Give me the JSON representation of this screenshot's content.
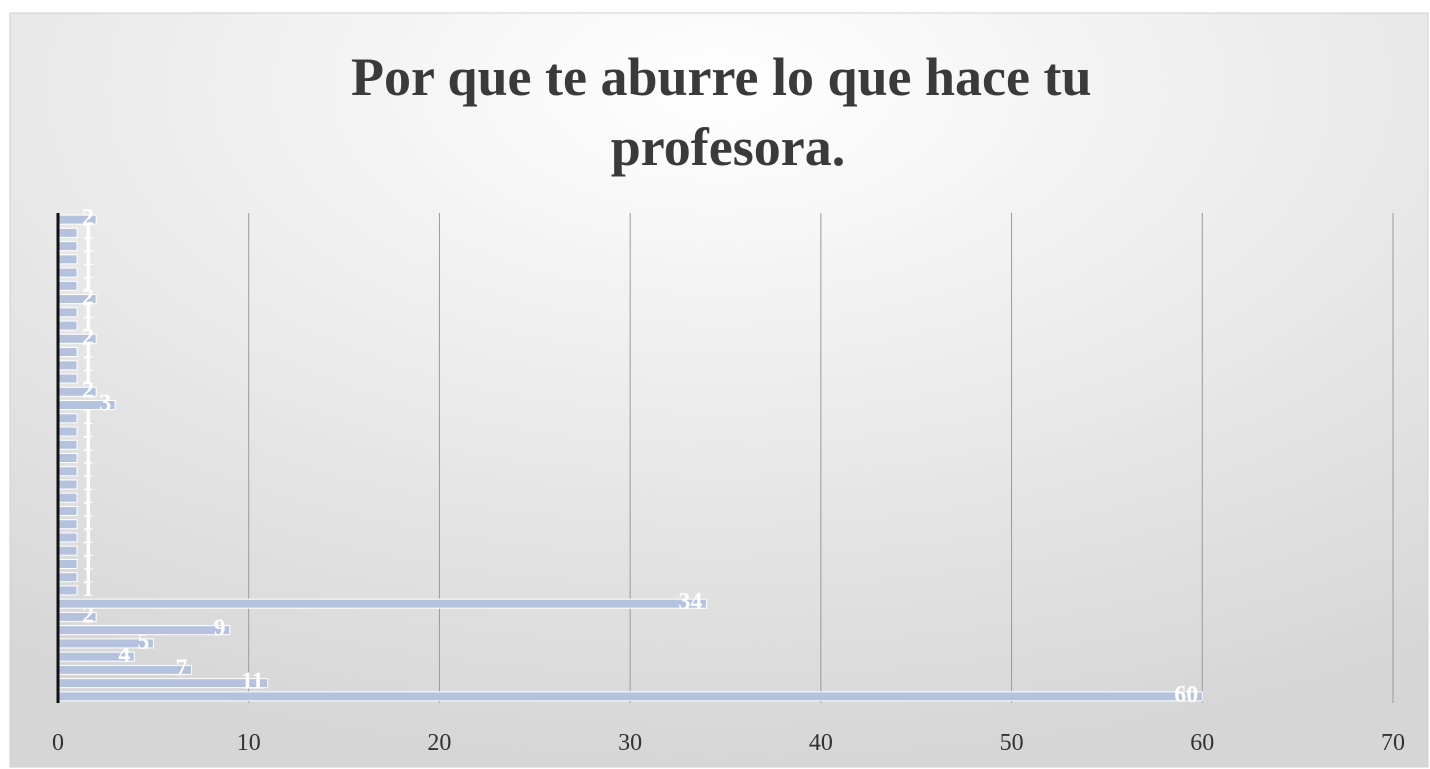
{
  "chart_data": {
    "type": "hbar",
    "title": "Por que te aburre lo que hace tu profesora.",
    "categories": [
      null,
      null,
      null,
      null,
      null,
      null,
      null,
      null,
      null,
      null,
      null,
      null,
      null,
      null,
      null,
      null,
      null,
      null,
      null,
      null,
      null,
      null,
      null,
      null,
      null,
      null,
      null,
      null,
      null,
      null,
      null,
      null,
      null,
      null,
      null,
      null,
      null
    ],
    "values": [
      60,
      11,
      7,
      4,
      5,
      9,
      2,
      34,
      1,
      1,
      1,
      1,
      1,
      1,
      1,
      1,
      1,
      1,
      1,
      1,
      1,
      1,
      3,
      2,
      1,
      1,
      1,
      2,
      1,
      1,
      2,
      1,
      1,
      1,
      1,
      1,
      2
    ],
    "color": "#b4c2de",
    "xlim": [
      0,
      70
    ],
    "xticks": [
      0,
      10,
      20,
      30,
      40,
      50,
      60,
      70
    ],
    "grid": true
  }
}
